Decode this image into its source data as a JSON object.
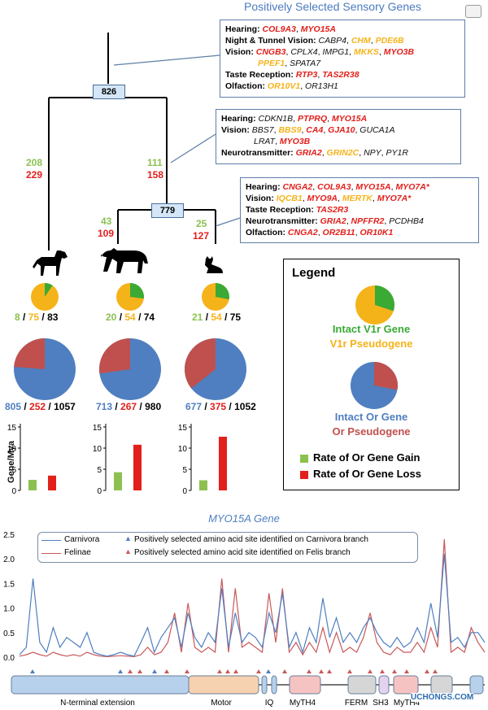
{
  "title": "Positively Selected Sensory Genes",
  "top_box": [
    {
      "label": "Hearing:",
      "genes": [
        {
          "t": "COL9A3",
          "c": "red"
        },
        {
          "t": "MYO15A",
          "c": "red"
        }
      ]
    },
    {
      "label": "Night & Tunnel Vision:",
      "genes": [
        {
          "t": "CABP4",
          "c": "blk"
        },
        {
          "t": "CHM",
          "c": "org"
        },
        {
          "t": "PDE6B",
          "c": "org"
        }
      ]
    },
    {
      "label": "Vision:",
      "genes": [
        {
          "t": "CNGB3",
          "c": "red"
        },
        {
          "t": "CPLX4",
          "c": "blk"
        },
        {
          "t": "IMPG1",
          "c": "blk"
        },
        {
          "t": "MKKS",
          "c": "org"
        },
        {
          "t": "MYO3B",
          "c": "red"
        }
      ]
    },
    {
      "label": "",
      "genes": [
        {
          "t": "PPEF1",
          "c": "org"
        },
        {
          "t": "SPATA7",
          "c": "blk"
        }
      ]
    },
    {
      "label": "Taste Reception:",
      "genes": [
        {
          "t": "RTP3",
          "c": "red"
        },
        {
          "t": "TAS2R38",
          "c": "red"
        }
      ]
    },
    {
      "label": "Olfaction:",
      "genes": [
        {
          "t": "OR10V1",
          "c": "org"
        },
        {
          "t": "OR13H1",
          "c": "blk"
        }
      ]
    }
  ],
  "mid_box": [
    {
      "label": "Hearing:",
      "genes": [
        {
          "t": "CDKN1B",
          "c": "blk"
        },
        {
          "t": "PTPRQ",
          "c": "red"
        },
        {
          "t": "MYO15A",
          "c": "red"
        }
      ]
    },
    {
      "label": "Vision:",
      "genes": [
        {
          "t": "BBS7",
          "c": "blk"
        },
        {
          "t": "BBS9",
          "c": "org"
        },
        {
          "t": "CA4",
          "c": "red"
        },
        {
          "t": "GJA10",
          "c": "red"
        },
        {
          "t": "GUCA1A",
          "c": "blk"
        }
      ]
    },
    {
      "label": "",
      "genes": [
        {
          "t": "LRAT",
          "c": "blk"
        },
        {
          "t": "MYO3B",
          "c": "red"
        }
      ]
    },
    {
      "label": "Neurotransmitter:",
      "genes": [
        {
          "t": "GRIA2",
          "c": "red"
        },
        {
          "t": "GRIN2C",
          "c": "org"
        },
        {
          "t": "NPY",
          "c": "blk"
        },
        {
          "t": "PY1R",
          "c": "blk"
        }
      ]
    }
  ],
  "low_box": [
    {
      "label": "Hearing:",
      "genes": [
        {
          "t": "CNGA2",
          "c": "red"
        },
        {
          "t": "COL9A3",
          "c": "red"
        },
        {
          "t": "MYO15A",
          "c": "red"
        },
        {
          "t": "MYO7A*",
          "c": "red"
        }
      ]
    },
    {
      "label": "Vision:",
      "genes": [
        {
          "t": "IQCB1",
          "c": "org"
        },
        {
          "t": "MYO9A",
          "c": "red"
        },
        {
          "t": "MERTK",
          "c": "org"
        },
        {
          "t": "MYO7A*",
          "c": "red"
        }
      ]
    },
    {
      "label": "Taste Reception:",
      "genes": [
        {
          "t": "TAS2R3",
          "c": "red"
        }
      ]
    },
    {
      "label": "Neurotransmitter:",
      "genes": [
        {
          "t": "GRIA2",
          "c": "red"
        },
        {
          "t": "NPFFR2",
          "c": "red"
        },
        {
          "t": "PCDHB4",
          "c": "blk"
        }
      ]
    },
    {
      "label": "Olfaction:",
      "genes": [
        {
          "t": "CNGA2",
          "c": "red"
        },
        {
          "t": "OR2B11",
          "c": "red"
        },
        {
          "t": "OR10K1",
          "c": "red"
        }
      ]
    }
  ],
  "tree": {
    "node_root": "826",
    "node_felid": "779",
    "branch_dog": {
      "gain": "208",
      "loss": "229"
    },
    "branch_felid": {
      "gain": "111",
      "loss": "158"
    },
    "branch_tiger": {
      "gain": "43",
      "loss": "109"
    },
    "branch_cat": {
      "gain": "25",
      "loss": "127"
    }
  },
  "species": [
    {
      "v1r_intact": "8",
      "v1r_pseudo": "75",
      "v1r_total": "83",
      "or_intact": "805",
      "or_pseudo": "252",
      "or_total": "1057",
      "v1r_frac": 0.096,
      "or_frac": 0.762,
      "gain_rate": 2.5,
      "loss_rate": 3.5
    },
    {
      "v1r_intact": "20",
      "v1r_pseudo": "54",
      "v1r_total": "74",
      "or_intact": "713",
      "or_pseudo": "267",
      "or_total": "980",
      "v1r_frac": 0.27,
      "or_frac": 0.728,
      "gain_rate": 4.3,
      "loss_rate": 10.8
    },
    {
      "v1r_intact": "21",
      "v1r_pseudo": "54",
      "v1r_total": "75",
      "or_intact": "677",
      "or_pseudo": "375",
      "or_total": "1052",
      "v1r_frac": 0.28,
      "or_frac": 0.644,
      "gain_rate": 2.4,
      "loss_rate": 12.7
    }
  ],
  "bar_axis": {
    "ylabel": "Gene/Mya",
    "ticks": [
      "0",
      "5",
      "10",
      "15"
    ]
  },
  "legend": {
    "title": "Legend",
    "v1r_intact": "Intact V1r Gene",
    "v1r_pseudo": "V1r Pseudogene",
    "or_intact": "Intact Or Gene",
    "or_pseudo": "Or Pseudogene",
    "gain": "Rate of Or Gene Gain",
    "loss": "Rate of Or Gene Loss"
  },
  "colors": {
    "green": "#8cc152",
    "orange": "#f5b31a",
    "blue": "#4f7fc0",
    "red": "#e2201c",
    "or_pseudo": "#c0504d",
    "felinae": "#c9595a"
  },
  "chart_data": {
    "type": "line",
    "title": "MYO15A Gene",
    "yticks": [
      "0.0",
      "0.5",
      "1.0",
      "1.5",
      "2.0",
      "2.5"
    ],
    "ylim": [
      0,
      2.5
    ],
    "series": [
      {
        "name": "Carnivora",
        "values": [
          0.05,
          0.2,
          1.6,
          0.3,
          0.1,
          0.6,
          0.2,
          0.4,
          0.3,
          0.2,
          0.5,
          0.1,
          0.05,
          0.02,
          0.05,
          0.1,
          0.05,
          0.02,
          0.3,
          0.6,
          0.1,
          0.4,
          0.6,
          0.8,
          0.2,
          0.9,
          0.4,
          0.2,
          0.5,
          0.3,
          1.4,
          0.2,
          0.9,
          0.3,
          0.5,
          0.4,
          0.2,
          0.9,
          0.5,
          1.3,
          0.2,
          0.5,
          0.1,
          0.6,
          0.3,
          1.2,
          0.4,
          0.8,
          0.3,
          0.5,
          0.3,
          0.6,
          0.8,
          0.5,
          0.3,
          0.2,
          0.4,
          0.2,
          0.3,
          0.6,
          0.3,
          1.1,
          0.4,
          2.1,
          0.3,
          0.4,
          0.2,
          0.5,
          0.5,
          0.3
        ]
      },
      {
        "name": "Felinae",
        "values": [
          0.02,
          0.05,
          0.1,
          0.05,
          0.02,
          0.1,
          0.05,
          0.02,
          0.05,
          0.02,
          0.1,
          0.05,
          0.02,
          0.01,
          0.02,
          0.03,
          0.02,
          0.01,
          0.05,
          0.2,
          0.05,
          0.1,
          0.3,
          0.9,
          0.1,
          1.1,
          0.2,
          0.1,
          0.2,
          0.1,
          1.6,
          0.1,
          1.4,
          0.2,
          0.3,
          0.2,
          0.1,
          1.3,
          0.3,
          1.4,
          0.1,
          0.3,
          0.05,
          0.3,
          0.1,
          0.6,
          0.1,
          0.5,
          0.1,
          0.2,
          0.1,
          0.4,
          0.9,
          0.3,
          0.1,
          0.05,
          0.2,
          0.1,
          0.1,
          0.3,
          0.1,
          0.6,
          0.2,
          2.4,
          0.1,
          0.2,
          0.1,
          0.6,
          0.3,
          0.1
        ]
      }
    ],
    "legend": [
      {
        "label": "Carnivora",
        "color": "#4f7fc0"
      },
      {
        "label": "Felinae",
        "color": "#c9595a"
      },
      {
        "label": "Positively selected amino acid site identified on Carnivora branch",
        "color": "#4f7fc0"
      },
      {
        "label": "Positively selected amino acid site identified on Felis branch",
        "color": "#c9595a"
      }
    ],
    "domains": [
      {
        "label": "N-terminal extension",
        "color": "#b7d0ec"
      },
      {
        "label": "Motor",
        "color": "#f6d2b0"
      },
      {
        "label": "IQ",
        "color": "#b7d0ec"
      },
      {
        "label": "MyTH4",
        "color": "#f6c3c3"
      },
      {
        "label": "FERM",
        "color": "#d6d6d6"
      },
      {
        "label": "SH3",
        "color": "#e3d3ef"
      },
      {
        "label": "MyTH4",
        "color": "#f6c3c3"
      }
    ]
  },
  "watermark": "UCHONGS.COM"
}
